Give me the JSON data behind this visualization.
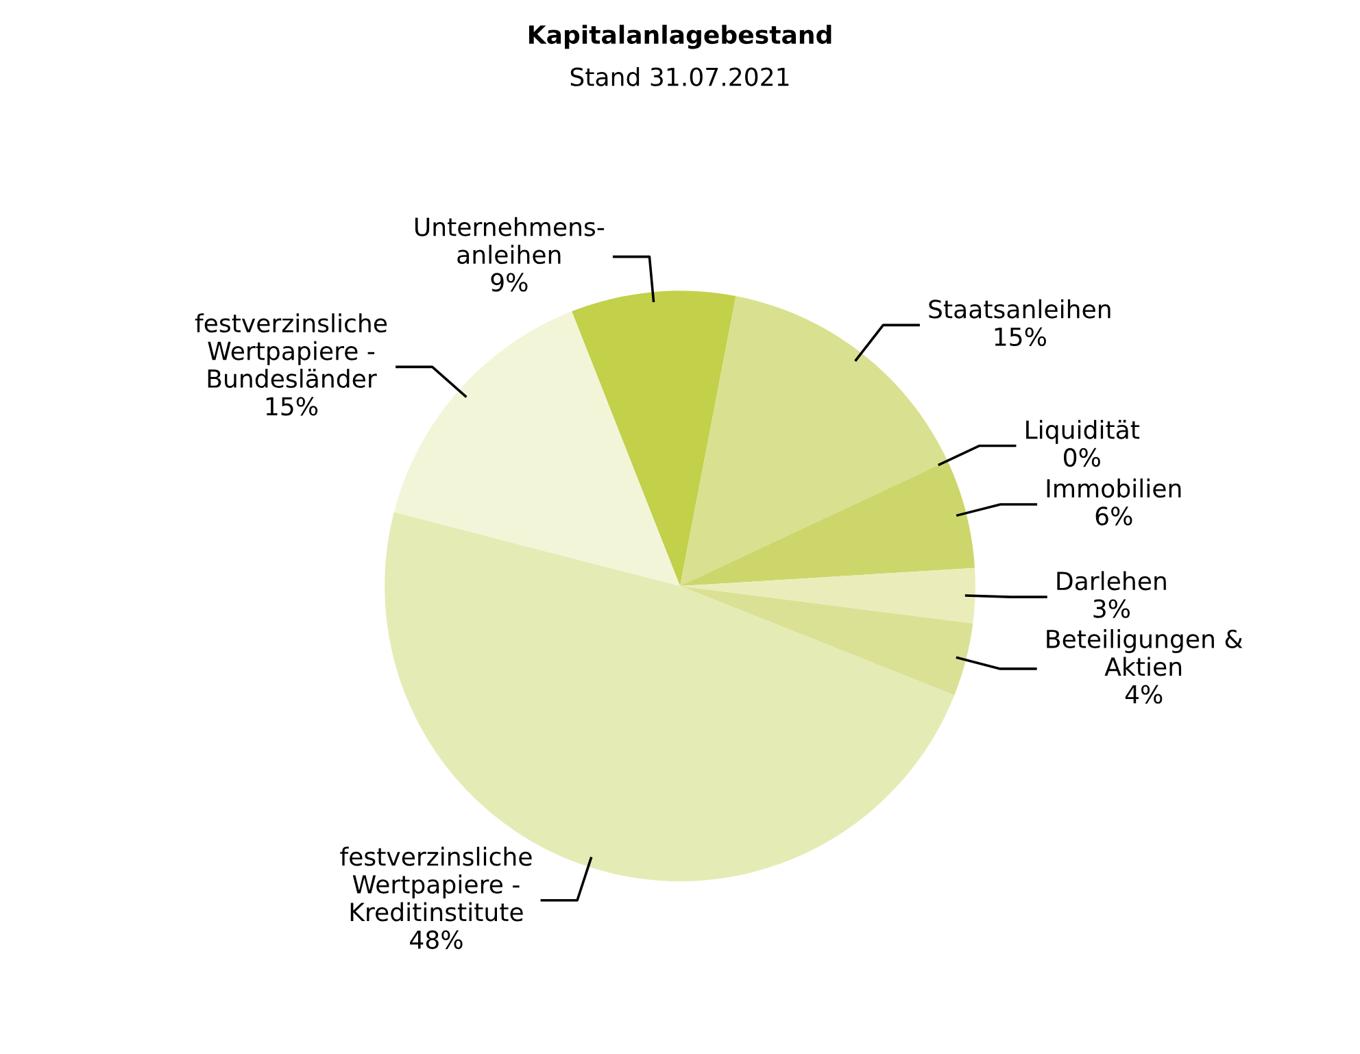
{
  "chart_data": {
    "type": "pie",
    "title": "Kapitalanlagebestand",
    "subtitle": "Stand 31.07.2021",
    "categories": [
      "Unternehmens-\nanleihen",
      "Staatsanleihen",
      "Liquidität",
      "Immobilien",
      "Darlehen",
      "Beteiligungen &\nAktien",
      "festverzinsliche\nWertpapiere -\nKreditinstitute",
      "festverzinsliche\nWertpapiere -\nBundesländer"
    ],
    "values": [
      9,
      15,
      0,
      6,
      3,
      4,
      48,
      15
    ],
    "value_labels": [
      "9%",
      "15%",
      "0%",
      "6%",
      "3%",
      "4%",
      "48%",
      "15%"
    ],
    "colors": [
      "#c2d04a",
      "#d9e08f",
      "#c9d465",
      "#ccd66b",
      "#eaedba",
      "#dbe194",
      "#e5ebb5",
      "#f3f5d8"
    ],
    "legend": false
  }
}
